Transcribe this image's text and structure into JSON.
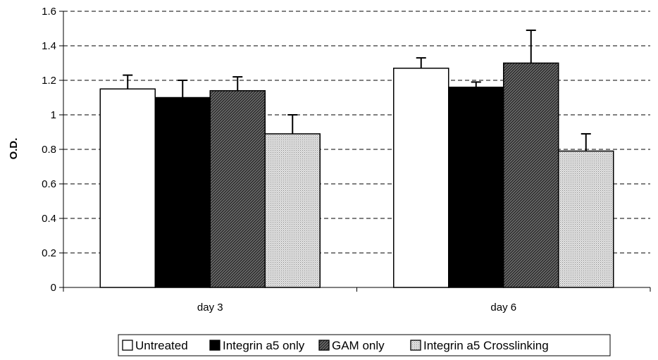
{
  "chart_data": {
    "type": "bar",
    "title": "",
    "xlabel": "",
    "ylabel": "O.D.",
    "ylim": [
      0,
      1.6
    ],
    "yticks": [
      0,
      0.2,
      0.4,
      0.6,
      0.8,
      1,
      1.2,
      1.4,
      1.6
    ],
    "ytick_labels": [
      "0",
      "0.2",
      "0.4",
      "0.6",
      "0.8",
      "1",
      "1.2",
      "1.4",
      "1.6"
    ],
    "grid": "horizontal dashed",
    "legend_position": "bottom",
    "categories": [
      "day 3",
      "day 6"
    ],
    "series": [
      {
        "name": "Untreated",
        "values": [
          1.15,
          1.27
        ],
        "errors": [
          0.08,
          0.06
        ],
        "fill": "white"
      },
      {
        "name": "Integrin a5 only",
        "values": [
          1.1,
          1.16
        ],
        "errors": [
          0.1,
          0.03
        ],
        "fill": "black"
      },
      {
        "name": "GAM only",
        "values": [
          1.14,
          1.3
        ],
        "errors": [
          0.08,
          0.19
        ],
        "fill": "dark-hatch"
      },
      {
        "name": "Integrin a5 Crosslinking",
        "values": [
          0.89,
          0.79
        ],
        "errors": [
          0.11,
          0.1
        ],
        "fill": "light-dots"
      }
    ]
  }
}
